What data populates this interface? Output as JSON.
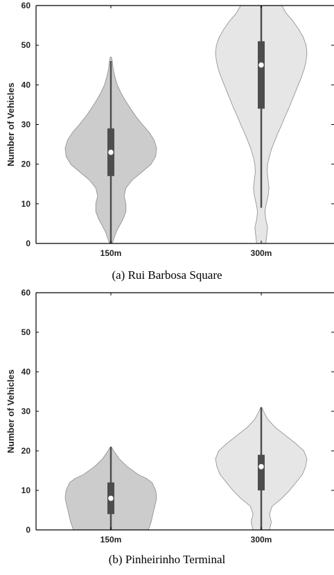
{
  "chart_data": [
    {
      "type": "violin",
      "caption": "(a) Rui Barbosa Square",
      "ylabel": "Number of Vehicles",
      "xlabel": "",
      "ylim": [
        0,
        60
      ],
      "yticks": [
        0,
        10,
        20,
        30,
        40,
        50,
        60
      ],
      "categories": [
        "150m",
        "300m"
      ],
      "colors": [
        "#cccccc",
        "#e6e6e6"
      ],
      "series": [
        {
          "category": "150m",
          "min": 0,
          "max": 47,
          "q1": 17,
          "median": 23,
          "q3": 29,
          "whisker_low": 0,
          "whisker_high": 46,
          "density": [
            [
              0,
              0.03
            ],
            [
              3,
              0.12
            ],
            [
              6,
              0.26
            ],
            [
              8,
              0.33
            ],
            [
              10,
              0.33
            ],
            [
              12,
              0.29
            ],
            [
              14,
              0.33
            ],
            [
              16,
              0.47
            ],
            [
              18,
              0.68
            ],
            [
              20,
              0.88
            ],
            [
              22,
              0.98
            ],
            [
              24,
              1.0
            ],
            [
              26,
              0.95
            ],
            [
              28,
              0.84
            ],
            [
              30,
              0.69
            ],
            [
              32,
              0.55
            ],
            [
              34,
              0.43
            ],
            [
              36,
              0.32
            ],
            [
              38,
              0.22
            ],
            [
              40,
              0.14
            ],
            [
              42,
              0.09
            ],
            [
              44,
              0.05
            ],
            [
              46,
              0.03
            ],
            [
              47,
              0.01
            ]
          ]
        },
        {
          "category": "300m",
          "min": 0,
          "max": 60,
          "q1": 34,
          "median": 45,
          "q3": 51,
          "whisker_low": 9,
          "whisker_high": 60,
          "density": [
            [
              0,
              0.1
            ],
            [
              2,
              0.12
            ],
            [
              4,
              0.14
            ],
            [
              6,
              0.1
            ],
            [
              8,
              0.08
            ],
            [
              10,
              0.11
            ],
            [
              12,
              0.15
            ],
            [
              14,
              0.17
            ],
            [
              16,
              0.15
            ],
            [
              18,
              0.13
            ],
            [
              20,
              0.14
            ],
            [
              22,
              0.18
            ],
            [
              24,
              0.23
            ],
            [
              26,
              0.3
            ],
            [
              28,
              0.37
            ],
            [
              30,
              0.45
            ],
            [
              32,
              0.52
            ],
            [
              34,
              0.6
            ],
            [
              36,
              0.67
            ],
            [
              38,
              0.74
            ],
            [
              40,
              0.81
            ],
            [
              42,
              0.88
            ],
            [
              44,
              0.94
            ],
            [
              46,
              0.98
            ],
            [
              48,
              1.0
            ],
            [
              50,
              0.98
            ],
            [
              52,
              0.92
            ],
            [
              54,
              0.82
            ],
            [
              56,
              0.7
            ],
            [
              58,
              0.55
            ],
            [
              60,
              0.45
            ]
          ]
        }
      ]
    },
    {
      "type": "violin",
      "caption": "(b) Pinheirinho Terminal",
      "ylabel": "Number of Vehicles",
      "xlabel": "",
      "ylim": [
        0,
        60
      ],
      "yticks": [
        0,
        10,
        20,
        30,
        40,
        50,
        60
      ],
      "categories": [
        "150m",
        "300m"
      ],
      "colors": [
        "#cccccc",
        "#e6e6e6"
      ],
      "series": [
        {
          "category": "150m",
          "min": 0,
          "max": 21,
          "q1": 4,
          "median": 8,
          "q3": 12,
          "whisker_low": 0,
          "whisker_high": 21,
          "density": [
            [
              0,
              0.82
            ],
            [
              2,
              0.88
            ],
            [
              4,
              0.92
            ],
            [
              6,
              0.96
            ],
            [
              8,
              1.0
            ],
            [
              10,
              0.98
            ],
            [
              12,
              0.9
            ],
            [
              13,
              0.78
            ],
            [
              14,
              0.6
            ],
            [
              16,
              0.36
            ],
            [
              18,
              0.18
            ],
            [
              20,
              0.06
            ],
            [
              21,
              0.01
            ]
          ]
        },
        {
          "category": "300m",
          "min": 0,
          "max": 31,
          "q1": 10,
          "median": 16,
          "q3": 19,
          "whisker_low": 0,
          "whisker_high": 31,
          "density": [
            [
              0,
              0.18
            ],
            [
              2,
              0.22
            ],
            [
              4,
              0.18
            ],
            [
              6,
              0.24
            ],
            [
              8,
              0.45
            ],
            [
              10,
              0.62
            ],
            [
              12,
              0.76
            ],
            [
              14,
              0.9
            ],
            [
              16,
              0.97
            ],
            [
              18,
              1.0
            ],
            [
              20,
              0.93
            ],
            [
              22,
              0.74
            ],
            [
              24,
              0.52
            ],
            [
              26,
              0.3
            ],
            [
              28,
              0.14
            ],
            [
              30,
              0.05
            ],
            [
              31,
              0.01
            ]
          ]
        }
      ]
    }
  ]
}
